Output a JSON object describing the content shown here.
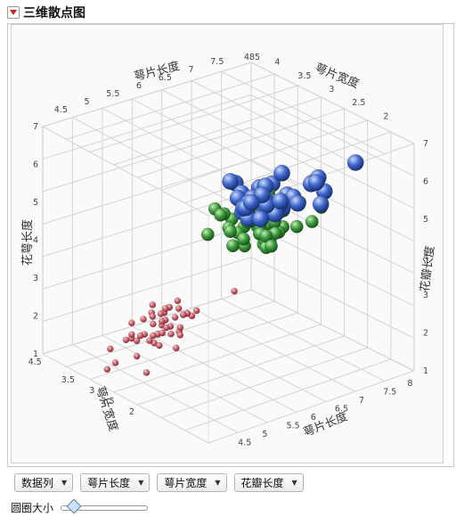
{
  "title": "三维散点图",
  "axes": {
    "sepal_length": "萼片长度",
    "sepal_width": "萼片宽度",
    "petal_length": "花瓣长度",
    "petal_length_left": "花萼长度"
  },
  "dropdowns": [
    "数据列",
    "萼片长度",
    "萼片宽度",
    "花瓣长度"
  ],
  "slider": {
    "label": "圆圈大小",
    "value": 0.1
  },
  "chart_data": {
    "type": "scatter3d",
    "axes_ticks": {
      "back_x": [
        "4.5",
        "5",
        "5.5",
        "6",
        "6.5",
        "7",
        "7.5"
      ],
      "back_y": [
        "4",
        "3.5",
        "3",
        "2.5",
        "2"
      ],
      "left_z": [
        "7",
        "6",
        "5",
        "4",
        "3",
        "2",
        "1"
      ],
      "right_z": [
        "7",
        "6",
        "5",
        "4",
        "3",
        "2",
        "1"
      ],
      "front_y": [
        "4.5",
        "3.5",
        "3",
        "2.5",
        "2"
      ],
      "front_x": [
        "8",
        "7.5",
        "7",
        "6.5",
        "6",
        "5.5",
        "5",
        "4.5"
      ],
      "top_mark": "485"
    },
    "series": [
      {
        "color": "#d2646e",
        "values": [
          [
            4.9,
            3.0,
            1.4
          ],
          [
            4.7,
            3.2,
            1.3
          ],
          [
            5.1,
            3.5,
            1.4
          ],
          [
            4.6,
            3.1,
            1.5
          ],
          [
            5.0,
            3.6,
            1.4
          ],
          [
            5.4,
            3.9,
            1.7
          ],
          [
            4.6,
            3.4,
            1.4
          ],
          [
            5.0,
            3.4,
            1.5
          ],
          [
            4.4,
            2.9,
            1.4
          ],
          [
            4.9,
            3.1,
            1.5
          ],
          [
            5.4,
            3.7,
            1.5
          ],
          [
            4.8,
            3.4,
            1.6
          ],
          [
            4.8,
            3.0,
            1.4
          ],
          [
            4.3,
            3.0,
            1.1
          ],
          [
            5.8,
            4.0,
            1.2
          ],
          [
            5.7,
            4.4,
            1.5
          ],
          [
            5.4,
            3.9,
            1.3
          ],
          [
            5.1,
            3.5,
            1.4
          ],
          [
            5.7,
            3.8,
            1.7
          ],
          [
            5.1,
            3.8,
            1.5
          ],
          [
            5.4,
            3.4,
            1.7
          ],
          [
            5.1,
            3.7,
            1.5
          ],
          [
            4.6,
            3.6,
            1.0
          ],
          [
            5.1,
            3.3,
            1.7
          ],
          [
            4.8,
            3.4,
            1.9
          ],
          [
            5.0,
            3.0,
            1.6
          ],
          [
            5.0,
            3.4,
            1.6
          ],
          [
            5.2,
            3.5,
            1.5
          ],
          [
            5.2,
            3.4,
            1.4
          ],
          [
            4.7,
            3.2,
            1.6
          ],
          [
            4.8,
            3.1,
            1.6
          ],
          [
            5.4,
            3.4,
            1.5
          ],
          [
            5.2,
            4.1,
            1.5
          ],
          [
            5.5,
            4.2,
            1.4
          ],
          [
            4.9,
            3.1,
            1.5
          ],
          [
            5.0,
            3.2,
            1.2
          ],
          [
            5.5,
            3.5,
            1.3
          ],
          [
            4.4,
            3.0,
            1.3
          ],
          [
            5.1,
            3.4,
            1.5
          ],
          [
            5.0,
            3.5,
            1.3
          ],
          [
            4.5,
            2.3,
            1.3
          ],
          [
            4.4,
            3.2,
            1.3
          ],
          [
            5.0,
            3.5,
            1.6
          ],
          [
            5.1,
            3.8,
            1.9
          ],
          [
            4.8,
            3.0,
            1.4
          ],
          [
            5.1,
            3.8,
            1.6
          ],
          [
            4.6,
            3.2,
            1.4
          ],
          [
            5.3,
            3.7,
            1.5
          ],
          [
            5.0,
            3.3,
            1.4
          ]
        ]
      },
      {
        "color": "#3f9a3f",
        "values": [
          [
            7.0,
            3.2,
            4.7
          ],
          [
            6.4,
            3.2,
            4.5
          ],
          [
            6.9,
            3.1,
            4.9
          ],
          [
            5.5,
            2.3,
            4.0
          ],
          [
            6.5,
            2.8,
            4.6
          ],
          [
            5.7,
            2.8,
            4.5
          ],
          [
            6.3,
            3.3,
            4.7
          ],
          [
            4.9,
            2.4,
            3.3
          ],
          [
            6.6,
            2.9,
            4.6
          ],
          [
            5.2,
            2.7,
            3.9
          ],
          [
            5.0,
            2.0,
            3.5
          ],
          [
            5.9,
            3.0,
            4.2
          ],
          [
            6.0,
            2.2,
            4.0
          ],
          [
            6.1,
            2.9,
            4.7
          ],
          [
            5.6,
            2.9,
            3.6
          ],
          [
            6.7,
            3.1,
            4.4
          ],
          [
            5.6,
            3.0,
            4.5
          ],
          [
            5.8,
            2.7,
            4.1
          ],
          [
            6.2,
            2.2,
            4.5
          ],
          [
            5.6,
            2.5,
            3.9
          ],
          [
            5.9,
            3.2,
            4.8
          ],
          [
            6.1,
            2.8,
            4.0
          ],
          [
            6.3,
            2.5,
            4.9
          ],
          [
            6.4,
            2.9,
            4.3
          ],
          [
            6.6,
            3.0,
            4.4
          ],
          [
            6.8,
            2.8,
            4.8
          ],
          [
            6.7,
            3.0,
            5.0
          ],
          [
            6.0,
            2.9,
            4.5
          ],
          [
            5.7,
            2.6,
            3.5
          ],
          [
            5.5,
            2.4,
            3.8
          ],
          [
            5.8,
            2.7,
            3.9
          ],
          [
            6.0,
            2.7,
            5.1
          ],
          [
            5.4,
            3.0,
            4.5
          ],
          [
            6.0,
            3.4,
            4.5
          ],
          [
            6.7,
            3.1,
            4.7
          ],
          [
            5.5,
            2.5,
            4.0
          ],
          [
            5.5,
            2.6,
            4.4
          ],
          [
            6.1,
            3.0,
            4.6
          ],
          [
            5.0,
            2.3,
            3.3
          ],
          [
            5.7,
            3.0,
            4.2
          ],
          [
            6.2,
            2.9,
            4.3
          ],
          [
            5.1,
            2.5,
            3.0
          ]
        ]
      },
      {
        "color": "#3f66c9",
        "values": [
          [
            6.3,
            3.3,
            6.0
          ],
          [
            5.8,
            2.7,
            5.1
          ],
          [
            7.1,
            3.0,
            5.9
          ],
          [
            6.3,
            2.9,
            5.6
          ],
          [
            6.5,
            3.0,
            5.8
          ],
          [
            7.6,
            3.0,
            6.6
          ],
          [
            4.9,
            2.5,
            4.5
          ],
          [
            7.3,
            2.9,
            6.3
          ],
          [
            6.7,
            2.5,
            5.8
          ],
          [
            7.2,
            3.6,
            6.1
          ],
          [
            6.5,
            3.2,
            5.1
          ],
          [
            6.4,
            2.7,
            5.3
          ],
          [
            6.8,
            3.0,
            5.5
          ],
          [
            5.7,
            2.5,
            5.0
          ],
          [
            6.4,
            3.2,
            5.3
          ],
          [
            7.7,
            3.8,
            6.7
          ],
          [
            7.7,
            2.6,
            6.9
          ],
          [
            6.0,
            2.2,
            5.0
          ],
          [
            6.9,
            3.2,
            5.7
          ],
          [
            5.6,
            2.8,
            4.9
          ],
          [
            6.3,
            2.7,
            4.9
          ],
          [
            6.7,
            3.3,
            5.7
          ],
          [
            7.2,
            3.2,
            6.0
          ],
          [
            6.2,
            2.8,
            4.8
          ],
          [
            6.1,
            3.0,
            4.9
          ],
          [
            7.2,
            3.0,
            5.8
          ],
          [
            7.4,
            2.8,
            6.1
          ],
          [
            7.9,
            3.8,
            6.4
          ],
          [
            6.3,
            2.8,
            5.1
          ],
          [
            6.1,
            2.6,
            5.6
          ],
          [
            7.7,
            3.0,
            6.1
          ],
          [
            6.4,
            3.1,
            5.5
          ],
          [
            6.0,
            3.0,
            4.8
          ],
          [
            6.9,
            3.1,
            5.4
          ],
          [
            6.7,
            3.1,
            5.6
          ],
          [
            5.8,
            2.7,
            5.1
          ],
          [
            6.8,
            3.2,
            5.9
          ],
          [
            6.7,
            3.0,
            5.2
          ],
          [
            6.5,
            3.0,
            5.2
          ],
          [
            5.9,
            3.0,
            5.1
          ]
        ]
      }
    ]
  }
}
